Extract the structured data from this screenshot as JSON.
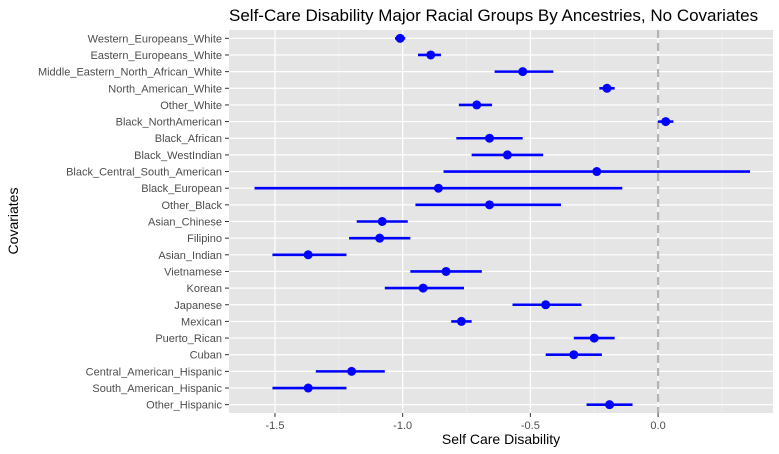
{
  "chart_data": {
    "type": "scatter",
    "subtype": "point-range",
    "title": "Self-Care Disability Major Racial Groups By Ancestries, No Covariates",
    "xlabel": "Self Care Disability",
    "ylabel": "Covariates",
    "xlim": [
      -1.68,
      0.45
    ],
    "x_ticks": [
      -1.5,
      -1.0,
      -0.5,
      0.0
    ],
    "x_tick_labels": [
      "-1.5",
      "-1.0",
      "-0.5",
      "0.0"
    ],
    "reference_line_x": 0.0,
    "grid": true,
    "legend": "none",
    "point_color": "#0000ff",
    "panel_color": "#e5e5e5",
    "reference_line_color": "#b3b3b3",
    "categories": [
      "Western_Europeans_White",
      "Eastern_Europeans_White",
      "Middle_Eastern_North_African_White",
      "North_American_White",
      "Other_White",
      "Black_NorthAmerican",
      "Black_African",
      "Black_WestIndian",
      "Black_Central_South_American",
      "Black_European",
      "Other_Black",
      "Asian_Chinese",
      "Filipino",
      "Asian_Indian",
      "Vietnamese",
      "Korean",
      "Japanese",
      "Mexican",
      "Puerto_Rican",
      "Cuban",
      "Central_American_Hispanic",
      "South_American_Hispanic",
      "Other_Hispanic"
    ],
    "estimates": [
      -1.01,
      -0.89,
      -0.53,
      -0.2,
      -0.71,
      0.03,
      -0.66,
      -0.59,
      -0.24,
      -0.86,
      -0.66,
      -1.08,
      -1.09,
      -1.37,
      -0.83,
      -0.92,
      -0.44,
      -0.77,
      -0.25,
      -0.33,
      -1.2,
      -1.37,
      -0.19
    ],
    "lower": [
      -1.03,
      -0.94,
      -0.64,
      -0.23,
      -0.78,
      0.0,
      -0.79,
      -0.73,
      -0.84,
      -1.58,
      -0.95,
      -1.18,
      -1.21,
      -1.51,
      -0.97,
      -1.07,
      -0.57,
      -0.81,
      -0.33,
      -0.44,
      -1.34,
      -1.51,
      -0.28
    ],
    "upper": [
      -0.99,
      -0.85,
      -0.41,
      -0.17,
      -0.65,
      0.06,
      -0.53,
      -0.45,
      0.36,
      -0.14,
      -0.38,
      -0.98,
      -0.97,
      -1.22,
      -0.69,
      -0.76,
      -0.3,
      -0.73,
      -0.17,
      -0.22,
      -1.07,
      -1.22,
      -0.1
    ]
  }
}
